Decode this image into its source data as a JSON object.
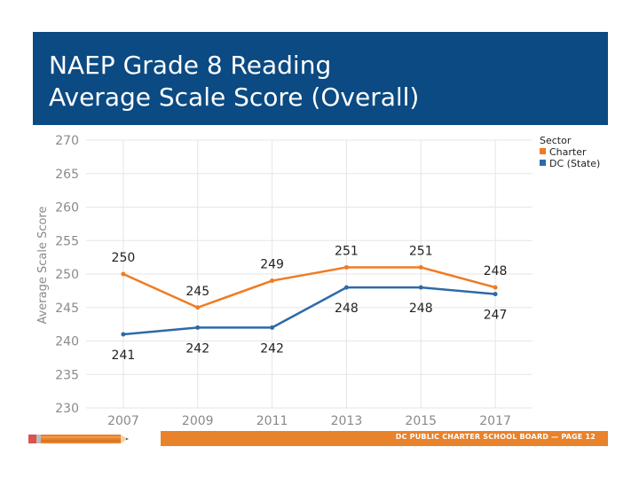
{
  "slide": {
    "title_line1": "NAEP Grade 8 Reading",
    "title_line2": "Average Scale Score (Overall)",
    "footer": "DC PUBLIC CHARTER SCHOOL BOARD — PAGE 12"
  },
  "colors": {
    "banner": "#0b4a82",
    "footer_bar": "#e8822b",
    "charter": "#f07b23",
    "dc_state": "#2e6aa8"
  },
  "chart_data": {
    "type": "line",
    "title": "",
    "xlabel": "",
    "ylabel": "Average Scale Score",
    "categories": [
      "2007",
      "2009",
      "2011",
      "2013",
      "2015",
      "2017"
    ],
    "ylim": [
      230,
      270
    ],
    "yticks": [
      230,
      235,
      240,
      245,
      250,
      255,
      260,
      265,
      270
    ],
    "grid": true,
    "legend_title": "Sector",
    "legend_position": "top-right",
    "series": [
      {
        "name": "Charter",
        "values": [
          250,
          245,
          249,
          251,
          251,
          248
        ],
        "color": "#f07b23",
        "label_position": "above"
      },
      {
        "name": "DC (State)",
        "values": [
          241,
          242,
          242,
          248,
          248,
          247
        ],
        "color": "#2e6aa8",
        "label_position": "below"
      }
    ]
  }
}
